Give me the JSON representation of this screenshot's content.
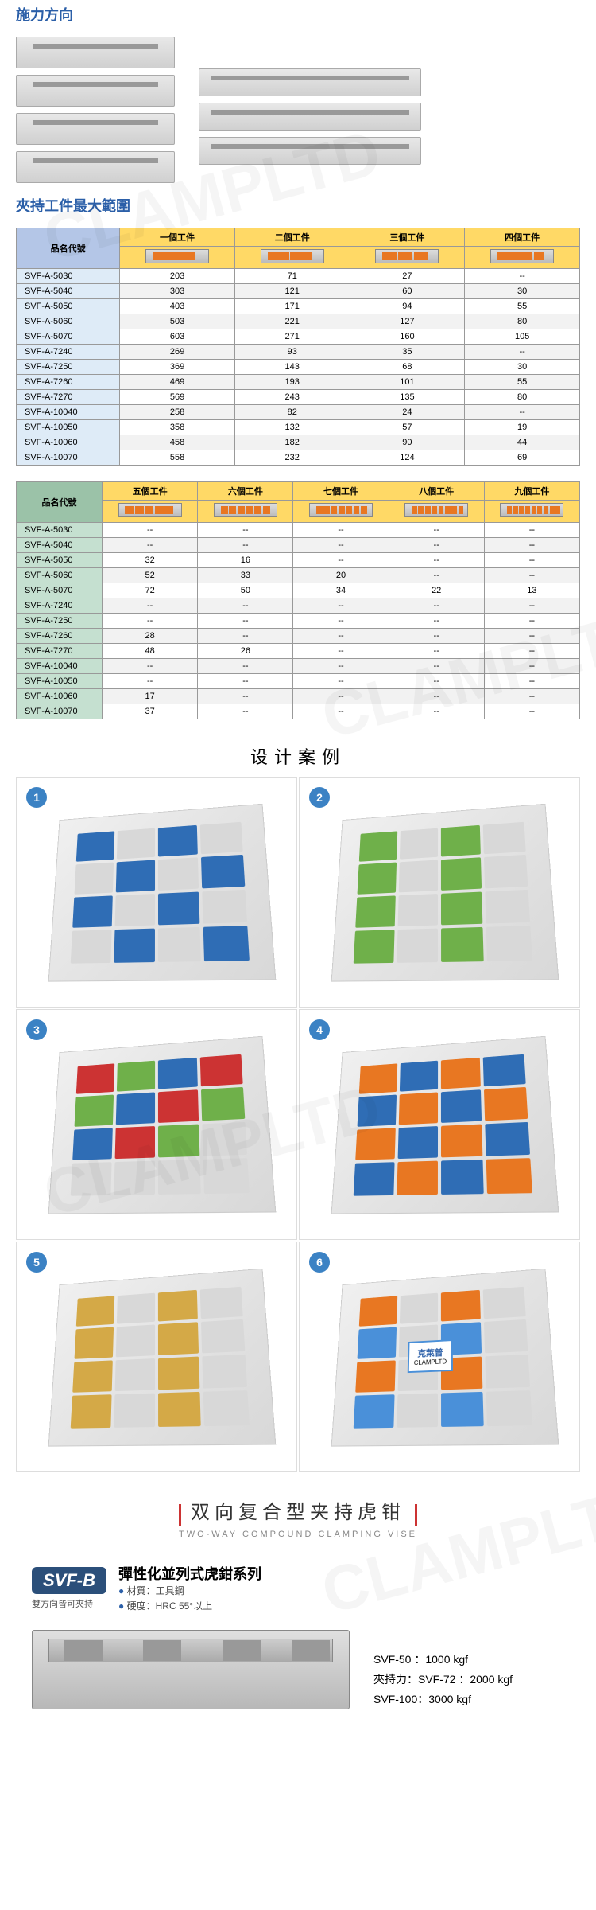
{
  "sections": {
    "force_direction": "施力方向",
    "clamp_range": "夾持工件最大範圍"
  },
  "watermark": "CLAMPLTD",
  "table1": {
    "code_header": "品名代號",
    "workpiece_headers": [
      "一個工件",
      "二個工件",
      "三個工件",
      "四個工件"
    ],
    "rows": [
      {
        "code": "SVF-A-5030",
        "vals": [
          "203",
          "71",
          "27",
          "--"
        ]
      },
      {
        "code": "SVF-A-5040",
        "vals": [
          "303",
          "121",
          "60",
          "30"
        ]
      },
      {
        "code": "SVF-A-5050",
        "vals": [
          "403",
          "171",
          "94",
          "55"
        ]
      },
      {
        "code": "SVF-A-5060",
        "vals": [
          "503",
          "221",
          "127",
          "80"
        ]
      },
      {
        "code": "SVF-A-5070",
        "vals": [
          "603",
          "271",
          "160",
          "105"
        ]
      },
      {
        "code": "SVF-A-7240",
        "vals": [
          "269",
          "93",
          "35",
          "--"
        ]
      },
      {
        "code": "SVF-A-7250",
        "vals": [
          "369",
          "143",
          "68",
          "30"
        ]
      },
      {
        "code": "SVF-A-7260",
        "vals": [
          "469",
          "193",
          "101",
          "55"
        ]
      },
      {
        "code": "SVF-A-7270",
        "vals": [
          "569",
          "243",
          "135",
          "80"
        ]
      },
      {
        "code": "SVF-A-10040",
        "vals": [
          "258",
          "82",
          "24",
          "--"
        ]
      },
      {
        "code": "SVF-A-10050",
        "vals": [
          "358",
          "132",
          "57",
          "19"
        ]
      },
      {
        "code": "SVF-A-10060",
        "vals": [
          "458",
          "182",
          "90",
          "44"
        ]
      },
      {
        "code": "SVF-A-10070",
        "vals": [
          "558",
          "232",
          "124",
          "69"
        ]
      }
    ]
  },
  "table2": {
    "code_header": "品名代號",
    "workpiece_headers": [
      "五個工件",
      "六個工件",
      "七個工件",
      "八個工件",
      "九個工件"
    ],
    "rows": [
      {
        "code": "SVF-A-5030",
        "vals": [
          "--",
          "--",
          "--",
          "--",
          "--"
        ]
      },
      {
        "code": "SVF-A-5040",
        "vals": [
          "--",
          "--",
          "--",
          "--",
          "--"
        ]
      },
      {
        "code": "SVF-A-5050",
        "vals": [
          "32",
          "16",
          "--",
          "--",
          "--"
        ]
      },
      {
        "code": "SVF-A-5060",
        "vals": [
          "52",
          "33",
          "20",
          "--",
          "--"
        ]
      },
      {
        "code": "SVF-A-5070",
        "vals": [
          "72",
          "50",
          "34",
          "22",
          "13"
        ]
      },
      {
        "code": "SVF-A-7240",
        "vals": [
          "--",
          "--",
          "--",
          "--",
          "--"
        ]
      },
      {
        "code": "SVF-A-7250",
        "vals": [
          "--",
          "--",
          "--",
          "--",
          "--"
        ]
      },
      {
        "code": "SVF-A-7260",
        "vals": [
          "28",
          "--",
          "--",
          "--",
          "--"
        ]
      },
      {
        "code": "SVF-A-7270",
        "vals": [
          "48",
          "26",
          "--",
          "--",
          "--"
        ]
      },
      {
        "code": "SVF-A-10040",
        "vals": [
          "--",
          "--",
          "--",
          "--",
          "--"
        ]
      },
      {
        "code": "SVF-A-10050",
        "vals": [
          "--",
          "--",
          "--",
          "--",
          "--"
        ]
      },
      {
        "code": "SVF-A-10060",
        "vals": [
          "17",
          "--",
          "--",
          "--",
          "--"
        ]
      },
      {
        "code": "SVF-A-10070",
        "vals": [
          "37",
          "--",
          "--",
          "--",
          "--"
        ]
      }
    ]
  },
  "design": {
    "title": "设计案例",
    "cards": [
      {
        "num": "1",
        "colors": [
          "#2f6db5",
          "#d8d8d8",
          "#2f6db5",
          "#d8d8d8",
          "#d8d8d8",
          "#2f6db5",
          "#d8d8d8",
          "#2f6db5",
          "#2f6db5",
          "#d8d8d8",
          "#2f6db5",
          "#d8d8d8",
          "#d8d8d8",
          "#2f6db5",
          "#d8d8d8",
          "#2f6db5"
        ]
      },
      {
        "num": "2",
        "colors": [
          "#6fb04a",
          "#d8d8d8",
          "#6fb04a",
          "#d8d8d8",
          "#6fb04a",
          "#d8d8d8",
          "#6fb04a",
          "#d8d8d8",
          "#6fb04a",
          "#d8d8d8",
          "#6fb04a",
          "#d8d8d8",
          "#6fb04a",
          "#d8d8d8",
          "#6fb04a",
          "#d8d8d8"
        ]
      },
      {
        "num": "3",
        "colors": [
          "#cc3333",
          "#6fb04a",
          "#2f6db5",
          "#cc3333",
          "#6fb04a",
          "#2f6db5",
          "#cc3333",
          "#6fb04a",
          "#2f6db5",
          "#cc3333",
          "#6fb04a",
          "#d8d8d8",
          "#d8d8d8",
          "#d8d8d8",
          "#d8d8d8",
          "#d8d8d8"
        ]
      },
      {
        "num": "4",
        "colors": [
          "#e87722",
          "#2f6db5",
          "#e87722",
          "#2f6db5",
          "#2f6db5",
          "#e87722",
          "#2f6db5",
          "#e87722",
          "#e87722",
          "#2f6db5",
          "#e87722",
          "#2f6db5",
          "#2f6db5",
          "#e87722",
          "#2f6db5",
          "#e87722"
        ]
      },
      {
        "num": "5",
        "colors": [
          "#d4a947",
          "#d8d8d8",
          "#d4a947",
          "#d8d8d8",
          "#d4a947",
          "#d8d8d8",
          "#d4a947",
          "#d8d8d8",
          "#d4a947",
          "#d8d8d8",
          "#d4a947",
          "#d8d8d8",
          "#d4a947",
          "#d8d8d8",
          "#d4a947",
          "#d8d8d8"
        ]
      },
      {
        "num": "6",
        "colors": [
          "#e87722",
          "#d8d8d8",
          "#e87722",
          "#d8d8d8",
          "#4a90d9",
          "#d8d8d8",
          "#4a90d9",
          "#d8d8d8",
          "#e87722",
          "#d8d8d8",
          "#e87722",
          "#d8d8d8",
          "#4a90d9",
          "#d8d8d8",
          "#4a90d9",
          "#d8d8d8"
        ],
        "label_cn": "克萊普",
        "label_en": "CLAMPLTD"
      }
    ]
  },
  "product": {
    "title_cn": "双向复合型夹持虎钳",
    "title_en": "TWO-WAY COMPOUND CLAMPING VISE",
    "badge": "SVF-B",
    "series_name": "彈性化並列式虎鉗系列",
    "bidirectional": "雙方向皆可夾持",
    "material_label": "材質：",
    "material_value": "工具鋼",
    "hardness_label": "硬度：",
    "hardness_value": "HRC 55°以上",
    "force_label": "夾持力：",
    "specs": [
      {
        "model": "SVF-50",
        "force": "1000 kgf"
      },
      {
        "model": "SVF-72",
        "force": "2000 kgf"
      },
      {
        "model": "SVF-100",
        "force": "3000 kgf"
      }
    ]
  }
}
